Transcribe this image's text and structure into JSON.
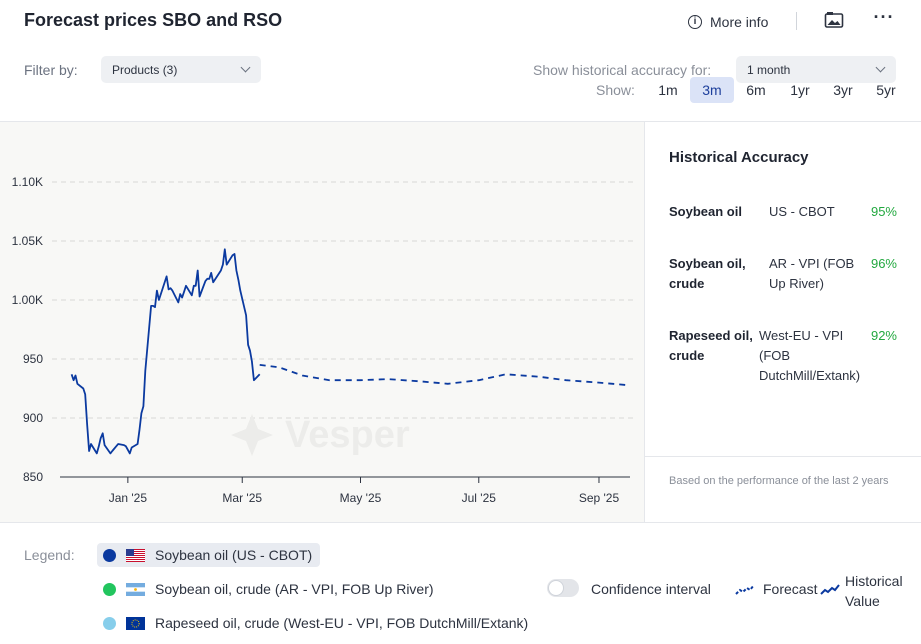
{
  "header": {
    "title": "Forecast prices SBO and RSO",
    "more_info": "More info",
    "more_label": "···"
  },
  "filters": {
    "filter_by_label": "Filter by:",
    "products_select": "Products (3)",
    "accuracy_label": "Show historical accuracy for:",
    "accuracy_select": "1 month",
    "show_label": "Show:",
    "ranges": [
      "1m",
      "3m",
      "6m",
      "1yr",
      "3yr",
      "5yr"
    ],
    "active_range": "3m"
  },
  "chart_data": {
    "type": "line",
    "y_ticks": [
      "850",
      "900",
      "950",
      "1.00K",
      "1.05K",
      "1.10K"
    ],
    "ylim": [
      850,
      1100
    ],
    "x_ticks": [
      "Jan '25",
      "Mar '25",
      "May '25",
      "Jul '25",
      "Sep '25"
    ],
    "watermark": "Vesper",
    "series": [
      {
        "name": "Soybean oil (US - CBOT)",
        "kind": "historical",
        "color": "#0b3aa0",
        "x": [
          "2024-12-03",
          "2024-12-04",
          "2024-12-05",
          "2024-12-06",
          "2024-12-09",
          "2024-12-10",
          "2024-12-11",
          "2024-12-12",
          "2024-12-13",
          "2024-12-16",
          "2024-12-17",
          "2024-12-18",
          "2024-12-19",
          "2024-12-20",
          "2024-12-23",
          "2024-12-24",
          "2024-12-26",
          "2024-12-27",
          "2024-12-30",
          "2024-12-31",
          "2025-01-02",
          "2025-01-03",
          "2025-01-06",
          "2025-01-07",
          "2025-01-08",
          "2025-01-09",
          "2025-01-10",
          "2025-01-13",
          "2025-01-14",
          "2025-01-15",
          "2025-01-16",
          "2025-01-17",
          "2025-01-21",
          "2025-01-22",
          "2025-01-23",
          "2025-01-24",
          "2025-01-27",
          "2025-01-28",
          "2025-01-29",
          "2025-01-30",
          "2025-01-31",
          "2025-02-03",
          "2025-02-04",
          "2025-02-05",
          "2025-02-06",
          "2025-02-07",
          "2025-02-10",
          "2025-02-11",
          "2025-02-12",
          "2025-02-13",
          "2025-02-14",
          "2025-02-18",
          "2025-02-19",
          "2025-02-20",
          "2025-02-21",
          "2025-02-24",
          "2025-02-25",
          "2025-02-26",
          "2025-02-27",
          "2025-02-28",
          "2025-03-03",
          "2025-03-04",
          "2025-03-05",
          "2025-03-06",
          "2025-03-07",
          "2025-03-10"
        ],
        "values": [
          937,
          932,
          936,
          929,
          925,
          920,
          895,
          872,
          878,
          870,
          876,
          883,
          887,
          877,
          870,
          872,
          876,
          878,
          877,
          876,
          870,
          875,
          878,
          890,
          904,
          910,
          940,
          995,
          995,
          994,
          1008,
          1000,
          1020,
          1009,
          1010,
          1008,
          998,
          1005,
          1002,
          1007,
          1012,
          1004,
          1012,
          1012,
          1025,
          1003,
          1016,
          1018,
          1018,
          1023,
          1015,
          1025,
          1030,
          1043,
          1030,
          1038,
          1039,
          1025,
          1017,
          1008,
          987,
          962,
          957,
          948,
          932,
          937
        ]
      },
      {
        "name": "Soybean oil (US - CBOT)",
        "kind": "forecast",
        "color": "#0b3aa0",
        "x": [
          "2025-03-10",
          "2025-03-20",
          "2025-04-01",
          "2025-04-15",
          "2025-05-01",
          "2025-05-15",
          "2025-06-01",
          "2025-06-15",
          "2025-07-01",
          "2025-07-15",
          "2025-08-01",
          "2025-08-15",
          "2025-09-01",
          "2025-09-15"
        ],
        "values": [
          945,
          943,
          936,
          932,
          932,
          933,
          931,
          929,
          932,
          937,
          935,
          932,
          930,
          928
        ]
      }
    ]
  },
  "accuracy": {
    "title": "Historical Accuracy",
    "rows": [
      {
        "product": "Soybean oil",
        "source": "US - CBOT",
        "value": "95%"
      },
      {
        "product": "Soybean oil, crude",
        "source": "AR - VPI (FOB Up River)",
        "value": "96%"
      },
      {
        "product": "Rapeseed oil, crude",
        "source": "West-EU - VPI (FOB DutchMill/Extank)",
        "value": "92%"
      }
    ],
    "note": "Based on the performance of the last 2 years"
  },
  "legend": {
    "label": "Legend:",
    "items": [
      {
        "label": "Soybean oil (US - CBOT)",
        "dot_color": "#0b3aa0",
        "flag": "us-flag-icon",
        "selected": true
      },
      {
        "label": "Soybean oil, crude (AR - VPI, FOB Up River)",
        "dot_color": "#22c55e",
        "flag": "argentina-flag-icon",
        "selected": false
      },
      {
        "label": "Rapeseed oil, crude (West-EU - VPI, FOB DutchMill/Extank)",
        "dot_color": "#87ceeb",
        "flag": "eu-flag-icon",
        "selected": false
      }
    ],
    "confidence_interval": "Confidence interval",
    "confidence_on": false,
    "forecast": "Forecast",
    "historical_value": "Historical Value"
  }
}
